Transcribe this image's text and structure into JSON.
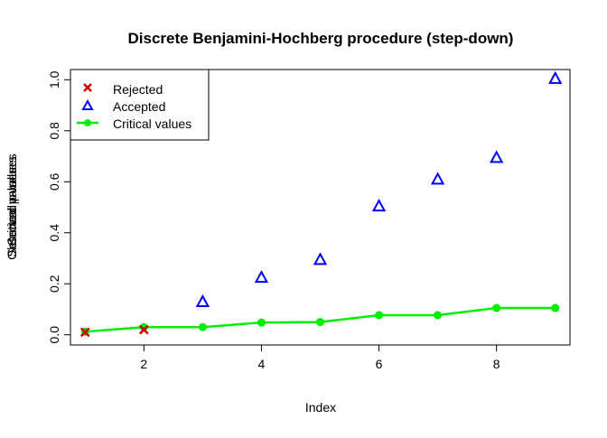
{
  "chart_data": {
    "type": "scatter",
    "title": "Discrete Benjamini-Hochberg procedure (step-down)",
    "xlabel": "Index",
    "ylabel_overlapped": [
      "Selected p-values",
      "Critical values",
      "Observed p-values"
    ],
    "xlim": [
      0.75,
      9.25
    ],
    "ylim": [
      -0.04,
      1.04
    ],
    "x_ticks": [
      2,
      4,
      6,
      8
    ],
    "y_ticks": [
      0.0,
      0.2,
      0.4,
      0.6,
      0.8,
      1.0
    ],
    "x_tick_labels": [
      "2",
      "4",
      "6",
      "8"
    ],
    "y_tick_labels": [
      "0.0",
      "0.2",
      "0.4",
      "0.6",
      "0.8",
      "1.0"
    ],
    "grid": false,
    "legend_position": "top-left",
    "series": [
      {
        "name": "Rejected",
        "marker": "x",
        "color": "#cc0000",
        "x": [
          1,
          2
        ],
        "y": [
          0.01,
          0.02
        ]
      },
      {
        "name": "Accepted",
        "marker": "triangle",
        "color": "#0000ff",
        "x": [
          3,
          4,
          5,
          6,
          7,
          8,
          9
        ],
        "y": [
          0.13,
          0.225,
          0.295,
          0.505,
          0.61,
          0.695,
          1.005
        ]
      },
      {
        "name": "Critical values",
        "marker": "line-dot",
        "color": "#00ee00",
        "x": [
          1,
          2,
          3,
          4,
          5,
          6,
          7,
          8,
          9
        ],
        "y": [
          0.012,
          0.03,
          0.03,
          0.048,
          0.05,
          0.077,
          0.077,
          0.105,
          0.105
        ]
      }
    ]
  }
}
